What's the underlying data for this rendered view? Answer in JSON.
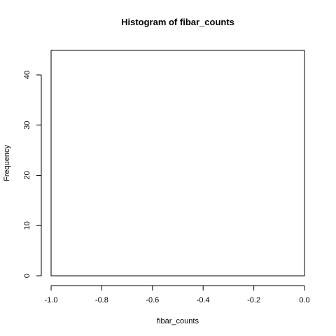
{
  "chart_data": {
    "type": "bar",
    "title": "Histogram of fibar_counts",
    "xlabel": "fibar_counts",
    "ylabel": "Frequency",
    "xlim": [
      -1.0,
      0.0
    ],
    "ylim": [
      0,
      45
    ],
    "x_ticks": [
      "-1.0",
      "-0.8",
      "-0.6",
      "-0.4",
      "-0.2",
      "0.0"
    ],
    "y_ticks": [
      "0",
      "10",
      "20",
      "30",
      "40"
    ],
    "categories": [],
    "values": [],
    "grid": false,
    "legend": "none"
  }
}
